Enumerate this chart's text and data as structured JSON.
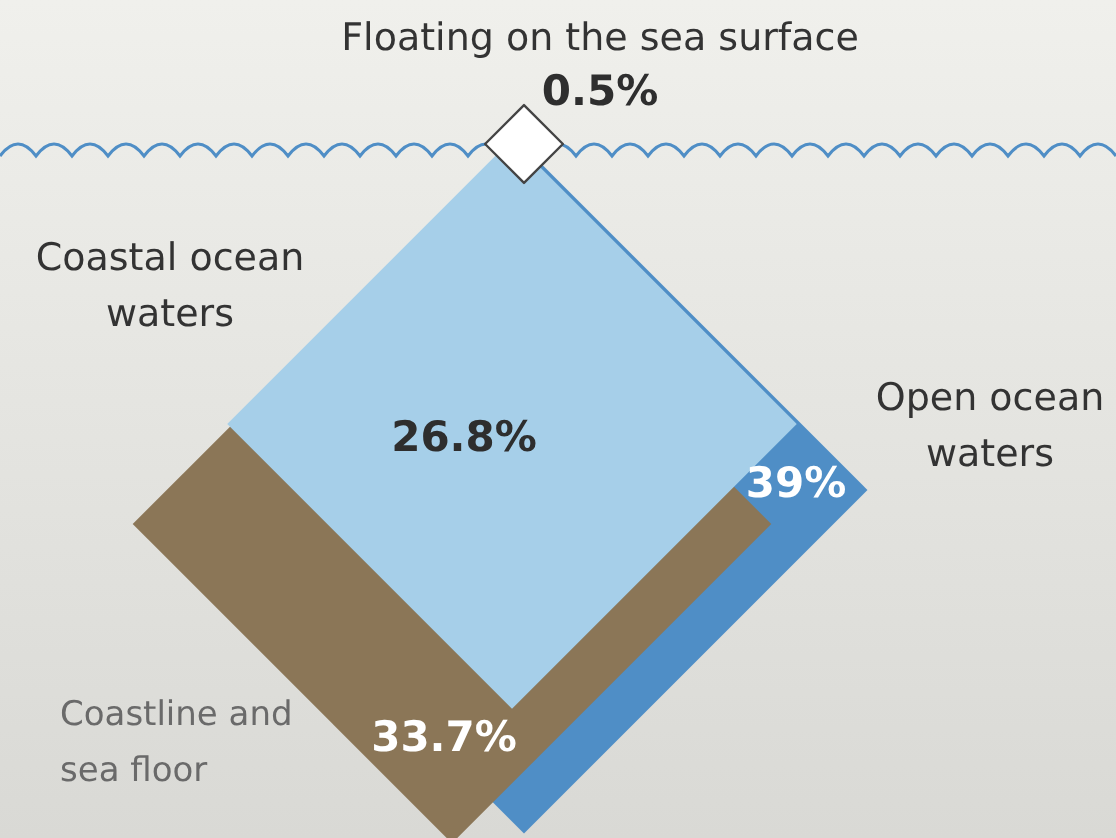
{
  "chart_data": {
    "type": "other",
    "categories": [
      "Open ocean waters",
      "Coastline and sea floor",
      "Coastal ocean waters",
      "Floating on the sea surface"
    ],
    "values": [
      39,
      33.7,
      26.8,
      0.5
    ],
    "value_labels": [
      "39%",
      "33.7%",
      "26.8%",
      "0.5%"
    ],
    "colors": [
      "#4f8ec6",
      "#8b7657",
      "#a6cfe9",
      "#ffffff"
    ]
  }
}
